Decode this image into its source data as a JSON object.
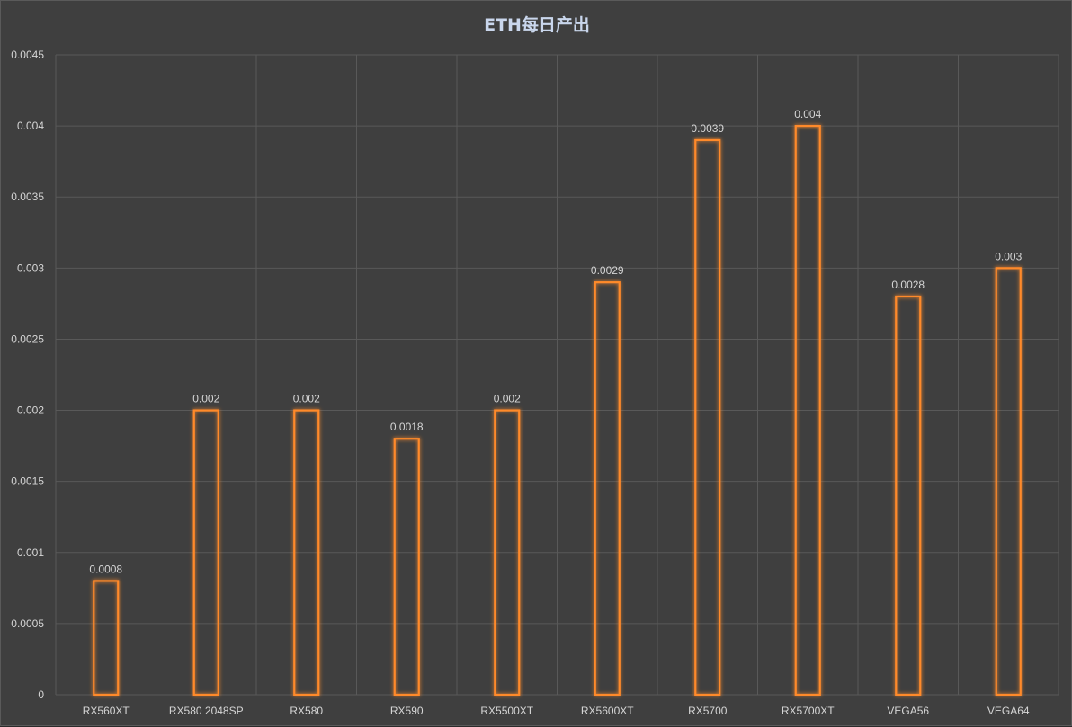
{
  "chart_data": {
    "type": "bar",
    "title": "ETH每日产出",
    "categories": [
      "RX560XT",
      "RX580 2048SP",
      "RX580",
      "RX590",
      "RX5500XT",
      "RX5600XT",
      "RX5700",
      "RX5700XT",
      "VEGA56",
      "VEGA64"
    ],
    "values": [
      0.0008,
      0.002,
      0.002,
      0.0018,
      0.002,
      0.0029,
      0.0039,
      0.004,
      0.0028,
      0.003
    ],
    "value_labels": [
      "0.0008",
      "0.002",
      "0.002",
      "0.0018",
      "0.002",
      "0.0029",
      "0.0039",
      "0.004",
      "0.0028",
      "0.003"
    ],
    "y_ticks": [
      "0",
      "0.0005",
      "0.001",
      "0.0015",
      "0.002",
      "0.0025",
      "0.003",
      "0.0035",
      "0.004",
      "0.0045"
    ],
    "ylim": [
      0,
      0.0045
    ],
    "grid": true,
    "colors": {
      "bar_stroke": "#e8731c",
      "bar_glow": "#ff8a2a",
      "grid": "#595959",
      "background": "#3f3f3f",
      "title": "#c9d6ec"
    }
  }
}
